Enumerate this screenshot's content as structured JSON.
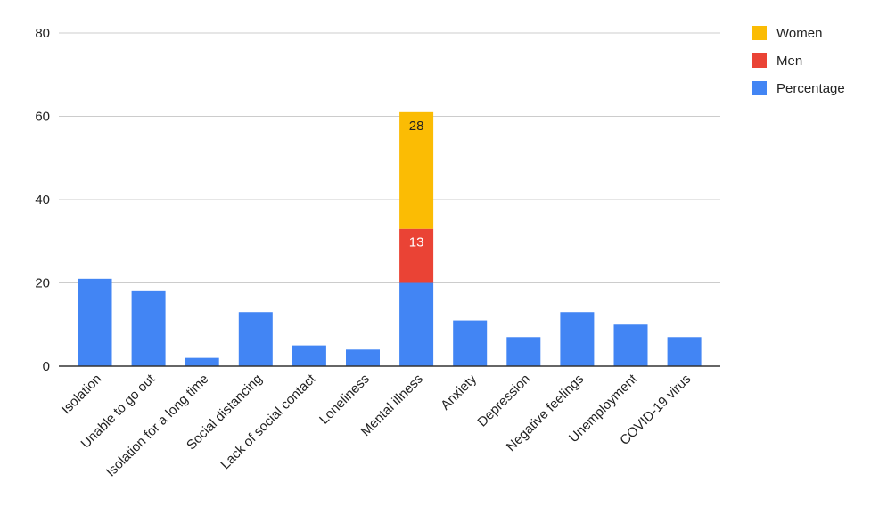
{
  "chart_data": {
    "type": "bar",
    "stacked": true,
    "title": "",
    "xlabel": "",
    "ylabel": "",
    "ylim": [
      0,
      80
    ],
    "yticks": [
      "0",
      "20",
      "40",
      "60",
      "80"
    ],
    "grid": true,
    "legend_position": "right",
    "categories": [
      "Isolation",
      "Unable to go out",
      "Isolation for a long time",
      "Social distancing",
      "Lack of social contact",
      "Loneliness",
      "Mental illness",
      "Anxiety",
      "Depression",
      "Negative feelings",
      "Unemployment",
      "COVID-19 virus"
    ],
    "series": [
      {
        "name": "Percentage",
        "color": "#4285F4",
        "values": [
          21,
          18,
          2,
          13,
          5,
          4,
          20,
          11,
          7,
          13,
          10,
          7
        ]
      },
      {
        "name": "Men",
        "color": "#EA4335",
        "values": [
          0,
          0,
          0,
          0,
          0,
          0,
          13,
          0,
          0,
          0,
          0,
          0
        ],
        "data_labels": [
          null,
          null,
          null,
          null,
          null,
          null,
          "13",
          null,
          null,
          null,
          null,
          null
        ],
        "label_color": "#ffffff"
      },
      {
        "name": "Women",
        "color": "#FBBC04",
        "values": [
          0,
          0,
          0,
          0,
          0,
          0,
          28,
          0,
          0,
          0,
          0,
          0
        ],
        "data_labels": [
          null,
          null,
          null,
          null,
          null,
          null,
          "28",
          null,
          null,
          null,
          null,
          null
        ],
        "label_color": "#222222"
      }
    ],
    "legend_order": [
      "Women",
      "Men",
      "Percentage"
    ]
  }
}
